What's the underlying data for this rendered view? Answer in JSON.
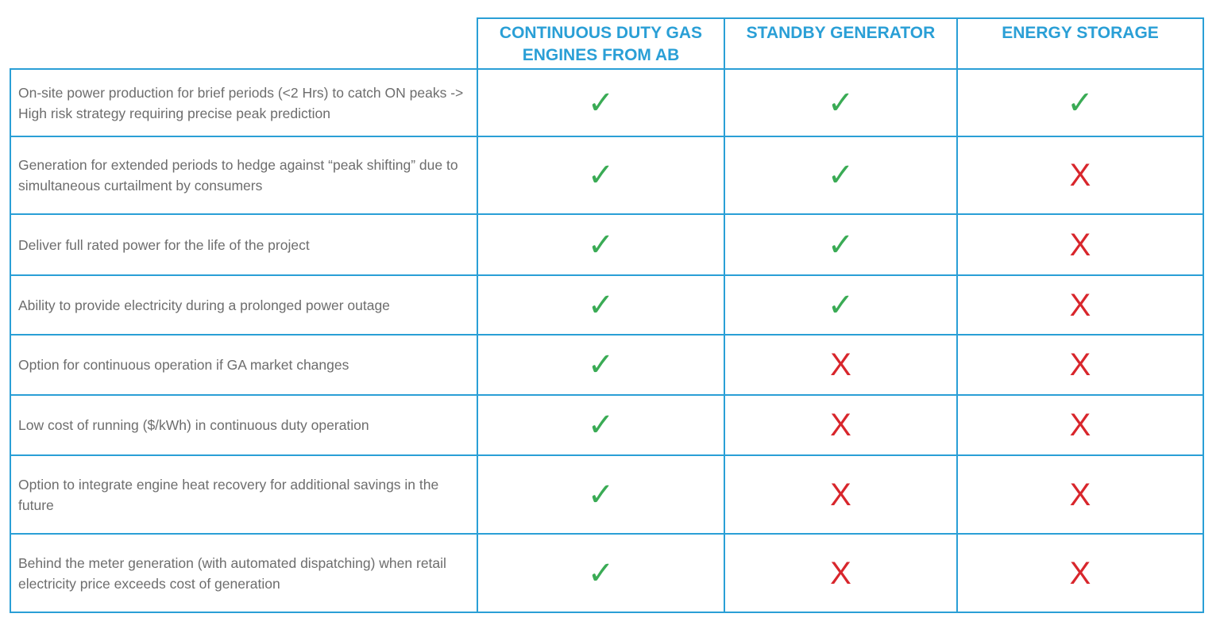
{
  "columns": [
    "CONTINUOUS DUTY GAS ENGINES FROM AB",
    "STANDBY GENERATOR",
    "ENERGY STORAGE"
  ],
  "symbols": {
    "yes": "✓",
    "no": "X"
  },
  "colors": {
    "border": "#2a9fd6",
    "header": "#2a9fd6",
    "yes": "#3aab55",
    "no": "#d8262c",
    "text": "#6d6d6d"
  },
  "rows": [
    {
      "feature": "On-site power production for brief periods (<2 Hrs) to catch ON peaks -> High risk strategy requiring precise peak prediction",
      "values": [
        true,
        true,
        true
      ]
    },
    {
      "feature": "Generation for extended periods to hedge against “peak shifting” due to simultaneous curtailment by consumers",
      "values": [
        true,
        true,
        false
      ]
    },
    {
      "feature": "Deliver full rated power for the life of the project",
      "values": [
        true,
        true,
        false
      ]
    },
    {
      "feature": "Ability to provide electricity during a prolonged power outage",
      "values": [
        true,
        true,
        false
      ]
    },
    {
      "feature": "Option for continuous operation if GA market changes",
      "values": [
        true,
        false,
        false
      ]
    },
    {
      "feature": "Low cost of running ($/kWh) in continuous duty operation",
      "values": [
        true,
        false,
        false
      ]
    },
    {
      "feature": "Option to integrate engine heat recovery for additional savings in the future",
      "values": [
        true,
        false,
        false
      ]
    },
    {
      "feature": "Behind the meter generation (with automated dispatching) when retail electricity price exceeds cost of generation",
      "values": [
        true,
        false,
        false
      ]
    }
  ]
}
